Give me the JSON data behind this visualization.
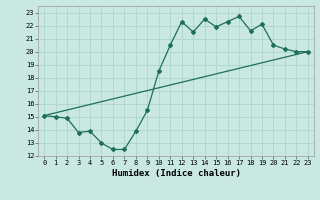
{
  "xlabel": "Humidex (Indice chaleur)",
  "xlim": [
    -0.5,
    23.5
  ],
  "ylim": [
    12,
    23.5
  ],
  "yticks": [
    12,
    13,
    14,
    15,
    16,
    17,
    18,
    19,
    20,
    21,
    22,
    23
  ],
  "xticks": [
    0,
    1,
    2,
    3,
    4,
    5,
    6,
    7,
    8,
    9,
    10,
    11,
    12,
    13,
    14,
    15,
    16,
    17,
    18,
    19,
    20,
    21,
    22,
    23
  ],
  "bg_color": "#c9e8e2",
  "grid_color": "#aed4cc",
  "line_color": "#1e6e5c",
  "line1_x": [
    0,
    1,
    2,
    3,
    4,
    5,
    6,
    7,
    8,
    9,
    10,
    11,
    12,
    13,
    14,
    15,
    16,
    17,
    18,
    19,
    20,
    21,
    22,
    23
  ],
  "line1_y": [
    15.1,
    15.0,
    14.9,
    13.8,
    13.9,
    13.0,
    12.5,
    12.5,
    13.9,
    15.5,
    18.5,
    20.5,
    22.3,
    21.5,
    22.5,
    21.9,
    22.3,
    22.7,
    21.6,
    22.1,
    20.5,
    20.2,
    20.0,
    20.0
  ],
  "line2_x": [
    0,
    23
  ],
  "line2_y": [
    15.1,
    20.0
  ],
  "tick_fontsize": 5.0,
  "xlabel_fontsize": 6.5
}
